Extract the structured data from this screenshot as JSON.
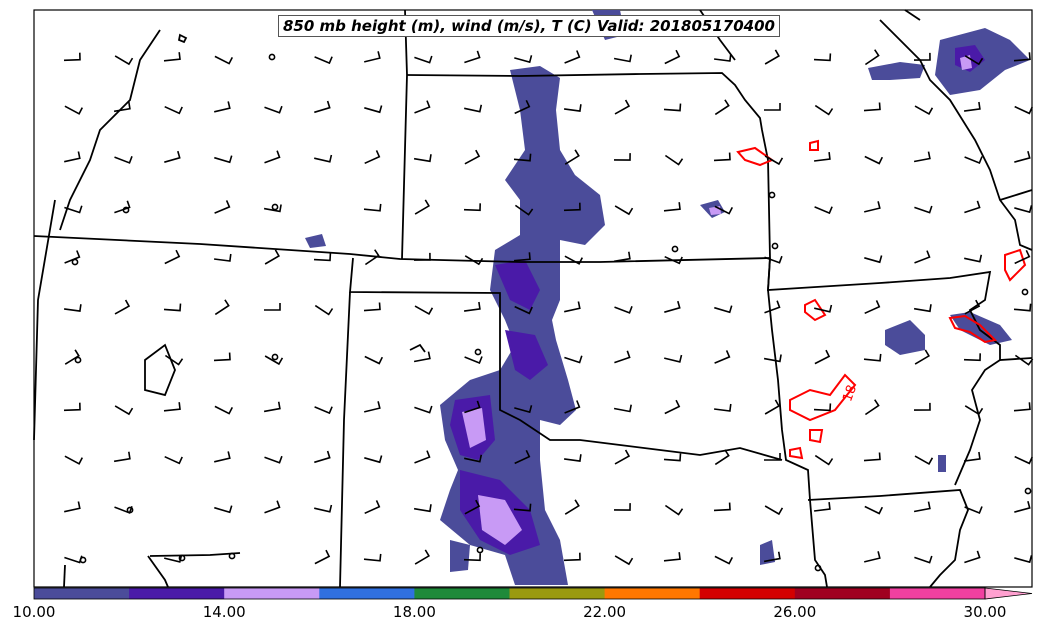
{
  "title": "850 mb height (m), wind (m/s), T (C) Valid: 201805170400",
  "contour_label": "18",
  "colorbar": {
    "ticks": [
      "10.00",
      "14.00",
      "18.00",
      "22.00",
      "26.00",
      "30.00"
    ],
    "colors": [
      "#4b4c9a",
      "#4a1aa8",
      "#c89af5",
      "#3070e0",
      "#1f8a3a",
      "#9a9a10",
      "#ff7700",
      "#d40000",
      "#a00020",
      "#f040a0",
      "#ffa0d0"
    ]
  },
  "colors": {
    "state_borders": "#000000",
    "temperature_contour": "#ff0000",
    "wind_barbs": "#000000"
  }
}
